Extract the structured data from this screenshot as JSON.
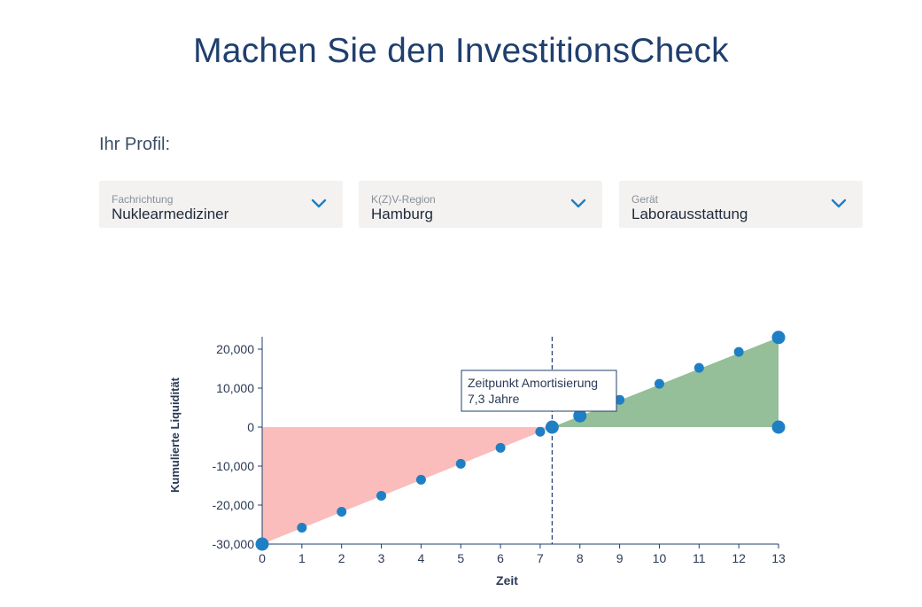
{
  "page": {
    "title": "Machen Sie den InvestitionsCheck",
    "profile_label": "Ihr Profil:"
  },
  "dropdowns": [
    {
      "label": "Fachrichtung",
      "value": "Nuklearmediziner",
      "icon": "chevron-down-icon"
    },
    {
      "label": "K(Z)V-Region",
      "value": "Hamburg",
      "icon": "chevron-down-icon"
    },
    {
      "label": "Gerät",
      "value": "Laborausstattung",
      "icon": "chevron-down-icon"
    }
  ],
  "colors": {
    "title": "#1f3f6e",
    "point": "#1f7fc4",
    "negative_area": "#fbbcbc",
    "positive_area": "#94bf99",
    "axis": "#1f3f6e"
  },
  "chart_data": {
    "type": "scatter",
    "xlabel": "Zeit",
    "ylabel": "Kumulierte Liquidität",
    "xlim": [
      0,
      13
    ],
    "ylim": [
      -30000,
      23000
    ],
    "x_ticks": [
      "0",
      "1",
      "2",
      "3",
      "4",
      "5",
      "6",
      "7",
      "8",
      "9",
      "10",
      "11",
      "12",
      "13"
    ],
    "y_ticks": [
      {
        "value": 20000,
        "label": "20,000"
      },
      {
        "value": 10000,
        "label": "10,000"
      },
      {
        "value": 0,
        "label": "0"
      },
      {
        "value": -10000,
        "label": "-10,000"
      },
      {
        "value": -20000,
        "label": "-20,000"
      },
      {
        "value": -30000,
        "label": "-30,000"
      }
    ],
    "points": [
      {
        "x": 0,
        "y": -30000,
        "large": true
      },
      {
        "x": 1,
        "y": -25800
      },
      {
        "x": 2,
        "y": -21700
      },
      {
        "x": 3,
        "y": -17600
      },
      {
        "x": 4,
        "y": -13500
      },
      {
        "x": 5,
        "y": -9400
      },
      {
        "x": 6,
        "y": -5300
      },
      {
        "x": 7,
        "y": -1200
      },
      {
        "x": 7.3,
        "y": 0,
        "large": true
      },
      {
        "x": 8,
        "y": 2900,
        "large": true
      },
      {
        "x": 9,
        "y": 7000
      },
      {
        "x": 10,
        "y": 11100
      },
      {
        "x": 11,
        "y": 15200
      },
      {
        "x": 12,
        "y": 19300
      },
      {
        "x": 13,
        "y": 23000,
        "large": true
      },
      {
        "x": 13,
        "y": 0,
        "large": true
      }
    ],
    "amortization": {
      "x": 7.3,
      "label_line1": "Zeitpunkt Amortisierung",
      "label_line2": "7,3 Jahre"
    }
  }
}
